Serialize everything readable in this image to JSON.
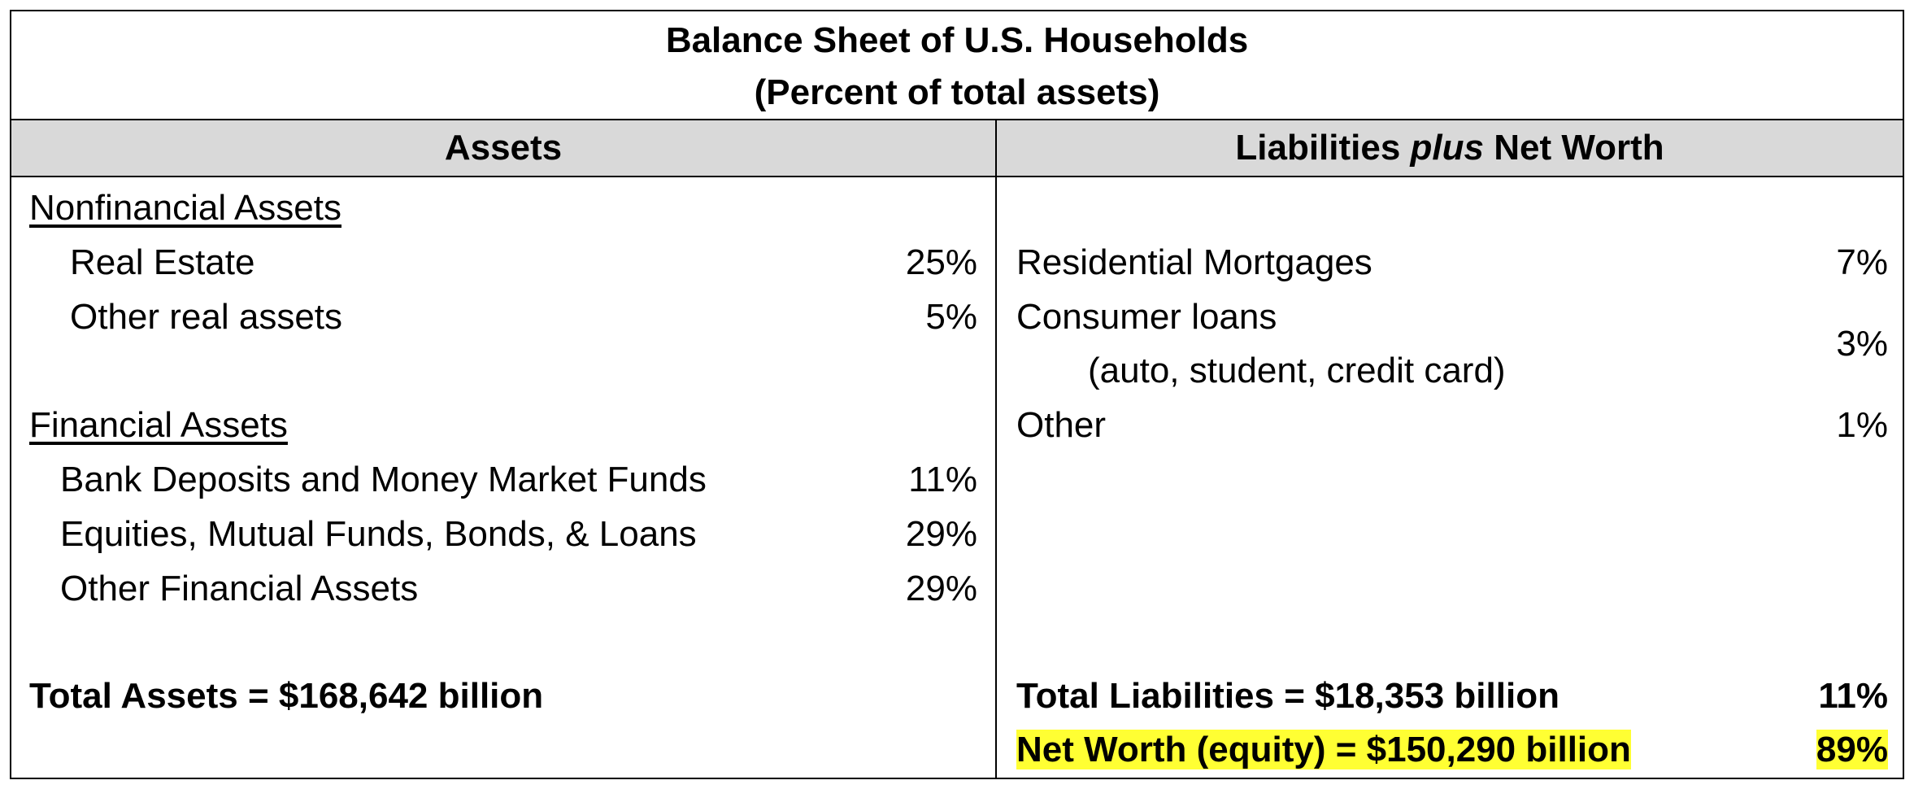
{
  "title": {
    "line1": "Balance Sheet of U.S. Households",
    "line2": "(Percent of total assets)"
  },
  "headers": {
    "assets": "Assets",
    "liab_part1": "Liabilities ",
    "liab_italic": "plus",
    "liab_part2": " Net Worth"
  },
  "assets": {
    "nonfinancial_heading": "Nonfinancial Assets",
    "real_estate": {
      "label": "Real Estate",
      "value": "25%"
    },
    "other_real": {
      "label": "Other real assets",
      "value": "5%"
    },
    "financial_heading": "Financial Assets",
    "bank_deposits": {
      "label": "Bank Deposits and Money Market Funds",
      "value": "11%"
    },
    "equities": {
      "label": "Equities, Mutual Funds, Bonds, & Loans",
      "value": "29%"
    },
    "other_financial": {
      "label": "Other Financial Assets",
      "value": "29%"
    },
    "total": "Total Assets = $168,642 billion"
  },
  "liabilities": {
    "mortgages": {
      "label": "Residential Mortgages",
      "value": "7%"
    },
    "consumer_loans": {
      "label": "Consumer loans",
      "sublabel": "(auto, student, credit card)",
      "value": "3%"
    },
    "other": {
      "label": "Other",
      "value": "1%"
    },
    "total": {
      "label": "Total Liabilities = $18,353 billion",
      "value": "11%"
    },
    "net_worth": {
      "label": "Net Worth (equity) = $150,290 billion",
      "value": "89%"
    }
  },
  "colors": {
    "header_bg": "#d9d9d9",
    "highlight": "#ffff33"
  }
}
